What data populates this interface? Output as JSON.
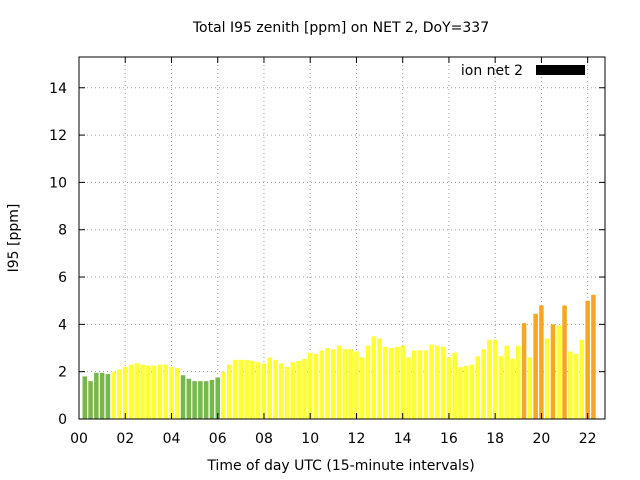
{
  "chart_data": {
    "type": "bar",
    "title": "Total I95 zenith [ppm] on NET 2, DoY=337",
    "xlabel": "Time of day UTC (15-minute intervals)",
    "ylabel": "I95 [ppm]",
    "xlim": [
      0,
      22.75
    ],
    "ylim": [
      0,
      15.3
    ],
    "x_ticks": [
      "00",
      "02",
      "04",
      "06",
      "08",
      "10",
      "12",
      "14",
      "16",
      "18",
      "20",
      "22"
    ],
    "y_ticks": [
      "0",
      "2",
      "4",
      "6",
      "8",
      "10",
      "12",
      "14"
    ],
    "grid": true,
    "legend": {
      "label": "ion net 2",
      "position": "top-right",
      "color": "#000000"
    },
    "colors": {
      "low": "#77b84a",
      "mid": "#ffff33",
      "high": "#f5a623"
    },
    "series": [
      {
        "interval_hours": 0.25,
        "start_hour": 0.25,
        "values": [
          1.8,
          1.6,
          1.95,
          1.95,
          1.9,
          2.0,
          2.1,
          2.2,
          2.3,
          2.35,
          2.3,
          2.25,
          2.25,
          2.3,
          2.3,
          2.2,
          2.15,
          1.85,
          1.7,
          1.6,
          1.6,
          1.6,
          1.65,
          1.75,
          2.0,
          2.3,
          2.5,
          2.5,
          2.5,
          2.45,
          2.4,
          2.35,
          2.6,
          2.5,
          2.35,
          2.2,
          2.4,
          2.45,
          2.55,
          2.8,
          2.75,
          2.9,
          3.0,
          2.95,
          3.1,
          2.95,
          2.95,
          2.85,
          2.6,
          3.1,
          3.5,
          3.4,
          3.05,
          3.0,
          3.05,
          3.1,
          2.6,
          2.9,
          2.9,
          2.9,
          3.15,
          3.1,
          3.05,
          2.6,
          2.8,
          2.2,
          2.25,
          2.3,
          2.65,
          2.95,
          3.35,
          3.35,
          2.65,
          3.1,
          2.55,
          3.1,
          4.05,
          2.6,
          4.45,
          4.8,
          3.4,
          4.0,
          3.95,
          4.8,
          2.85,
          2.75,
          3.35,
          5.0,
          5.25
        ]
      }
    ]
  }
}
